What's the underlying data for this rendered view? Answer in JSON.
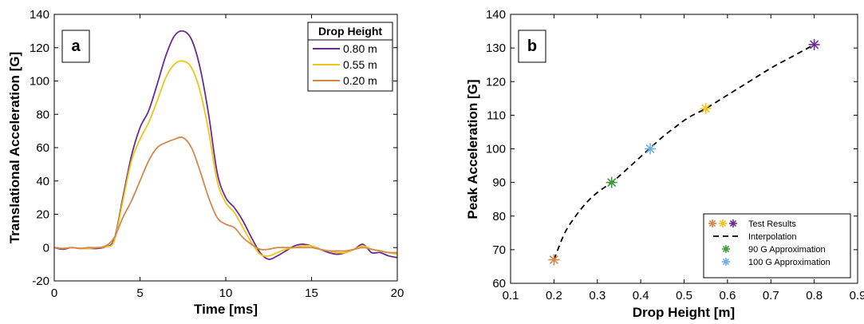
{
  "chart_data": [
    {
      "type": "line",
      "panel_label": "a",
      "xlabel": "Time [ms]",
      "ylabel": "Translational Acceleration [G]",
      "xlim": [
        0,
        20
      ],
      "ylim": [
        -20,
        140
      ],
      "xticks": [
        0,
        5,
        10,
        15,
        20
      ],
      "yticks": [
        -20,
        0,
        20,
        40,
        60,
        80,
        100,
        120,
        140
      ],
      "grid": false,
      "legend": {
        "title": "Drop Height",
        "placement": "top-right"
      },
      "series": [
        {
          "name": "0.80 m",
          "color": "#6a2c91",
          "x": [
            0,
            0.5,
            1,
            1.5,
            2,
            2.5,
            3,
            3.5,
            4,
            4.5,
            5,
            5.5,
            6,
            6.5,
            7,
            7.5,
            8,
            8.5,
            9,
            9.5,
            10,
            10.5,
            11,
            11.5,
            12,
            12.5,
            13,
            13.5,
            14,
            14.5,
            15,
            15.5,
            16,
            16.5,
            17,
            17.5,
            18,
            18.5,
            19,
            19.5,
            20
          ],
          "y": [
            0,
            -1,
            0,
            -0.5,
            -0.5,
            -0.5,
            0.5,
            5,
            30,
            55,
            72,
            82,
            98,
            115,
            127,
            130,
            125,
            108,
            80,
            45,
            30,
            24,
            16,
            6,
            -3,
            -7,
            -5,
            -2,
            1,
            2,
            1,
            -1,
            -3,
            -4,
            -3,
            -1,
            2,
            -3,
            -3,
            -5,
            -6
          ]
        },
        {
          "name": "0.55 m",
          "color": "#f0c419",
          "x": [
            0,
            0.5,
            1,
            1.5,
            2,
            2.5,
            3,
            3.5,
            4,
            4.5,
            5,
            5.5,
            6,
            6.5,
            7,
            7.5,
            8,
            8.5,
            9,
            9.5,
            10,
            10.5,
            11,
            11.5,
            12,
            12.5,
            13,
            13.5,
            14,
            14.5,
            15,
            15.5,
            16,
            16.5,
            17,
            17.5,
            18,
            18.5,
            19,
            19.5,
            20
          ],
          "y": [
            0,
            -0.5,
            0,
            -0.5,
            -0.5,
            0,
            0.5,
            4,
            28,
            52,
            65,
            75,
            88,
            102,
            110,
            112,
            108,
            94,
            70,
            40,
            27,
            21,
            12,
            3,
            -4,
            -5,
            -3,
            -1,
            0,
            1,
            1,
            -1,
            -2,
            -3,
            -3,
            -1,
            1,
            -1,
            -2,
            -3,
            -4
          ]
        },
        {
          "name": "0.20 m",
          "color": "#d4874a",
          "x": [
            0,
            0.5,
            1,
            1.5,
            2,
            2.5,
            3,
            3.5,
            4,
            4.5,
            5,
            5.5,
            6,
            6.5,
            7,
            7.5,
            8,
            8.5,
            9,
            9.5,
            10,
            10.5,
            11,
            11.5,
            12,
            12.5,
            13,
            13.5,
            14,
            14.5,
            15,
            15.5,
            16,
            16.5,
            17,
            17.5,
            18,
            18.5,
            19,
            19.5,
            20
          ],
          "y": [
            0,
            -0.5,
            0,
            -0.5,
            0,
            0,
            1,
            6,
            18,
            28,
            40,
            52,
            60,
            63,
            65,
            66,
            60,
            46,
            30,
            18,
            14,
            12,
            6,
            2,
            -1,
            -1,
            0,
            0,
            0,
            0,
            0,
            -1,
            -2,
            -2,
            -2,
            -1,
            0,
            -1,
            -2,
            -3,
            -3
          ]
        }
      ]
    },
    {
      "type": "scatter",
      "panel_label": "b",
      "xlabel": "Drop Height [m]",
      "ylabel": "Peak Acceleration [G]",
      "xlim": [
        0.1,
        0.9
      ],
      "ylim": [
        60,
        140
      ],
      "xticks": [
        0.1,
        0.2,
        0.3,
        0.4,
        0.5,
        0.6,
        0.7,
        0.8,
        0.9
      ],
      "yticks": [
        60,
        70,
        80,
        90,
        100,
        110,
        120,
        130,
        140
      ],
      "grid": false,
      "legend": {
        "placement": "bottom-right"
      },
      "test_results": {
        "name": "Test Results",
        "points": [
          {
            "x": 0.2,
            "y": 67,
            "color": "#d4874a"
          },
          {
            "x": 0.55,
            "y": 112,
            "color": "#f0c419"
          },
          {
            "x": 0.8,
            "y": 131,
            "color": "#6a2c91"
          }
        ]
      },
      "interpolation": {
        "name": "Interpolation",
        "color": "#000000",
        "x": [
          0.2,
          0.225,
          0.25,
          0.275,
          0.3,
          0.333,
          0.36,
          0.39,
          0.42,
          0.45,
          0.48,
          0.51,
          0.55,
          0.6,
          0.65,
          0.7,
          0.75,
          0.8
        ],
        "y": [
          67,
          75,
          80,
          84,
          87,
          90,
          93,
          96.5,
          100,
          103.5,
          106.5,
          109.3,
          112,
          116,
          120,
          124,
          127.5,
          131
        ]
      },
      "approx_90": {
        "name": "90 G Approximation",
        "x": 0.333,
        "y": 90,
        "color": "#3a9a3a"
      },
      "approx_100": {
        "name": "100 G Approximation",
        "x": 0.422,
        "y": 100,
        "color": "#6ab0e4"
      }
    }
  ]
}
